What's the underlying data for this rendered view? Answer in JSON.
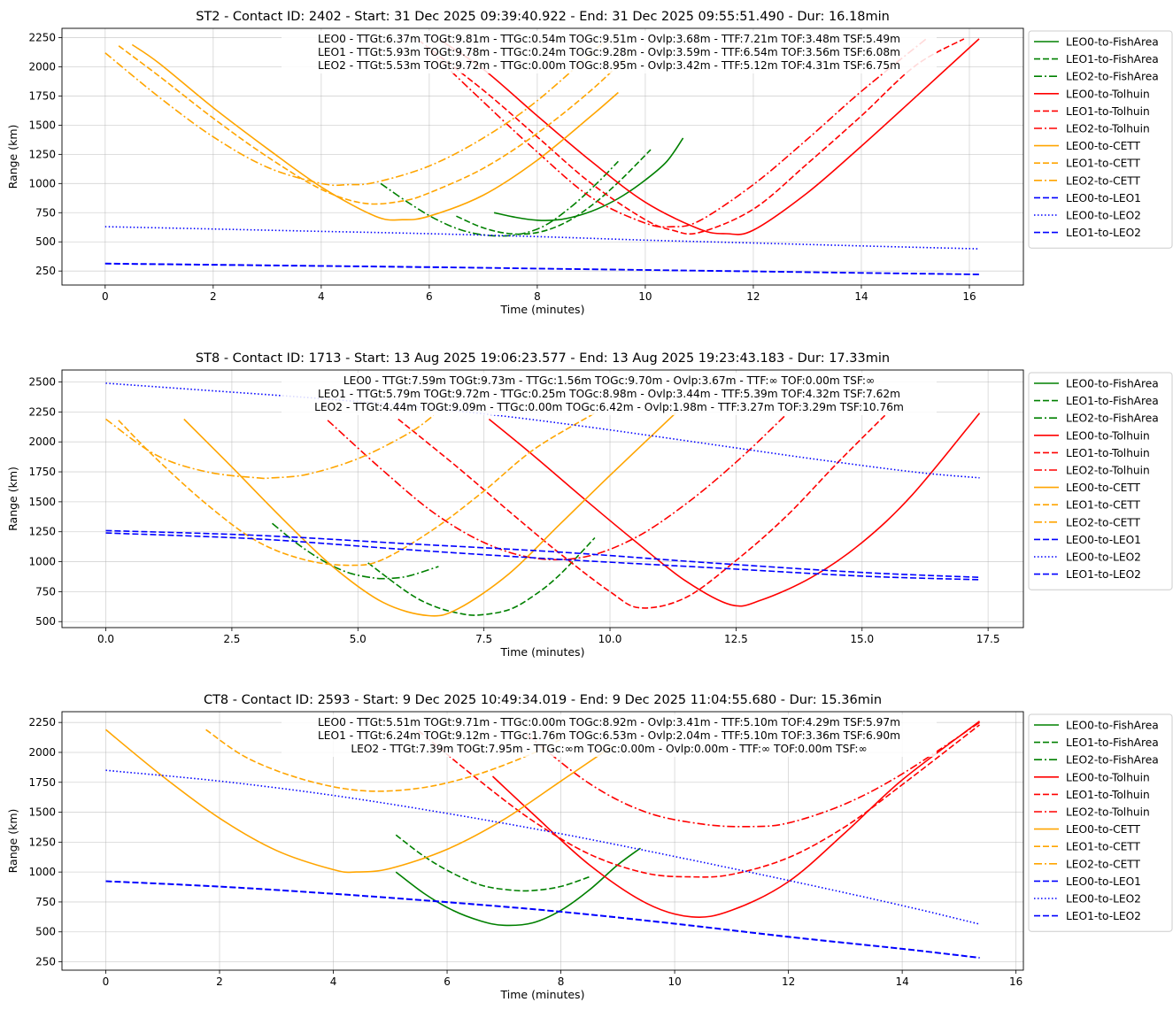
{
  "x_axis_label": "Time (minutes)",
  "y_axis_label": "Range (km)",
  "series_styles": [
    {
      "name": "LEO0-to-FishArea",
      "color": "#008000",
      "dash": "solid"
    },
    {
      "name": "LEO1-to-FishArea",
      "color": "#008000",
      "dash": "dashed"
    },
    {
      "name": "LEO2-to-FishArea",
      "color": "#008000",
      "dash": "dashdot"
    },
    {
      "name": "LEO0-to-Tolhuin",
      "color": "#ff0000",
      "dash": "solid"
    },
    {
      "name": "LEO1-to-Tolhuin",
      "color": "#ff0000",
      "dash": "dashed"
    },
    {
      "name": "LEO2-to-Tolhuin",
      "color": "#ff0000",
      "dash": "dashdot"
    },
    {
      "name": "LEO0-to-CETT",
      "color": "#ffa500",
      "dash": "solid"
    },
    {
      "name": "LEO1-to-CETT",
      "color": "#ffa500",
      "dash": "dashed"
    },
    {
      "name": "LEO2-to-CETT",
      "color": "#ffa500",
      "dash": "dashdot"
    },
    {
      "name": "LEO0-to-LEO1",
      "color": "#0000ff",
      "dash": "dashed"
    },
    {
      "name": "LEO0-to-LEO2",
      "color": "#0000ff",
      "dash": "dotted"
    },
    {
      "name": "LEO1-to-LEO2",
      "color": "#0000ff",
      "dash": "dashed"
    }
  ],
  "chart_data": [
    {
      "type": "line",
      "title": "ST2 - Contact ID: 2402 - Start: 31 Dec 2025 09:39:40.922 - End: 31 Dec 2025 09:55:51.490 - Dur: 16.18min",
      "xlabel": "Time (minutes)",
      "ylabel": "Range (km)",
      "xlim": [
        -0.8,
        17.0
      ],
      "ylim": [
        130,
        2330
      ],
      "xticks": [
        0,
        2,
        4,
        6,
        8,
        10,
        12,
        14,
        16
      ],
      "xtick_labels": [
        "0",
        "2",
        "4",
        "6",
        "8",
        "10",
        "12",
        "14",
        "16"
      ],
      "yticks": [
        250,
        500,
        750,
        1000,
        1250,
        1500,
        1750,
        2000,
        2250
      ],
      "grid": true,
      "legend": "outside-right",
      "annotations": [
        "LEO0 - TTGt:6.37m TOGt:9.81m - TTGc:0.54m TOGc:9.51m - Ovlp:3.68m - TTF:7.21m TOF:3.48m TSF:5.49m",
        "LEO1 - TTGt:5.93m TOGt:9.78m - TTGc:0.24m TOGc:9.28m - Ovlp:3.59m - TTF:6.54m TOF:3.56m TSF:6.08m",
        "LEO2 - TTGt:5.53m TOGt:9.72m - TTGc:0.00m TOGc:8.95m - Ovlp:3.42m - TTF:5.12m TOF:4.31m TSF:6.75m"
      ],
      "series": [
        {
          "name": "LEO0-to-FishArea",
          "x": [
            7.2,
            7.6,
            8.0,
            8.4,
            8.8,
            9.2,
            9.6,
            10.0,
            10.4,
            10.7
          ],
          "y": [
            750,
            710,
            685,
            690,
            730,
            800,
            900,
            1030,
            1190,
            1390
          ]
        },
        {
          "name": "LEO1-to-FishArea",
          "x": [
            6.5,
            7.0,
            7.5,
            8.0,
            8.5,
            9.0,
            9.5,
            10.1
          ],
          "y": [
            720,
            620,
            570,
            580,
            660,
            810,
            1010,
            1290
          ]
        },
        {
          "name": "LEO2-to-FishArea",
          "x": [
            5.1,
            5.6,
            6.1,
            6.6,
            7.1,
            7.6,
            8.1,
            8.6,
            9.1,
            9.5
          ],
          "y": [
            1000,
            840,
            700,
            600,
            555,
            560,
            630,
            790,
            1000,
            1190
          ]
        },
        {
          "name": "LEO0-to-Tolhuin",
          "x": [
            6.2,
            7.0,
            8.0,
            9.0,
            10.0,
            11.0,
            11.5,
            12.0,
            13.0,
            14.0,
            15.0,
            16.18
          ],
          "y": [
            2230,
            1980,
            1580,
            1190,
            840,
            610,
            570,
            600,
            920,
            1320,
            1740,
            2240
          ]
        },
        {
          "name": "LEO1-to-Tolhuin",
          "x": [
            5.8,
            7.0,
            8.0,
            9.0,
            10.0,
            10.5,
            11.0,
            12.0,
            13.0,
            14.0,
            15.0,
            15.9
          ],
          "y": [
            2230,
            1800,
            1400,
            1000,
            690,
            600,
            580,
            780,
            1170,
            1580,
            2010,
            2240
          ]
        },
        {
          "name": "LEO2-to-Tolhuin",
          "x": [
            6.0,
            7.0,
            8.0,
            9.0,
            10.0,
            10.5,
            11.0,
            12.0,
            13.0,
            14.0,
            15.2
          ],
          "y": [
            2140,
            1700,
            1270,
            880,
            660,
            630,
            680,
            990,
            1380,
            1790,
            2240
          ]
        },
        {
          "name": "LEO0-to-CETT",
          "x": [
            0.5,
            1.0,
            2.0,
            3.0,
            4.0,
            5.0,
            5.5,
            6.0,
            7.0,
            8.0,
            9.0,
            9.5
          ],
          "y": [
            2190,
            2030,
            1650,
            1300,
            970,
            720,
            690,
            720,
            900,
            1200,
            1580,
            1780
          ]
        },
        {
          "name": "LEO1-to-CETT",
          "x": [
            0.25,
            1.0,
            2.0,
            3.0,
            4.0,
            4.8,
            5.5,
            6.0,
            7.0,
            8.0,
            9.0,
            9.8
          ],
          "y": [
            2180,
            1920,
            1560,
            1230,
            950,
            830,
            850,
            920,
            1130,
            1430,
            1800,
            2150
          ]
        },
        {
          "name": "LEO2-to-CETT",
          "x": [
            0.0,
            1.0,
            2.0,
            3.0,
            4.0,
            4.5,
            5.0,
            6.0,
            7.0,
            8.0,
            9.2
          ],
          "y": [
            2120,
            1740,
            1400,
            1140,
            1000,
            990,
            1010,
            1150,
            1390,
            1710,
            2200
          ]
        },
        {
          "name": "LEO0-to-LEO1",
          "x": [
            0,
            2,
            4,
            6,
            8,
            10,
            12,
            14,
            16.18
          ],
          "y": [
            315,
            305,
            295,
            285,
            272,
            260,
            248,
            235,
            222
          ]
        },
        {
          "name": "LEO0-to-LEO2",
          "x": [
            0,
            2,
            4,
            6,
            8,
            10,
            12,
            14,
            16.18
          ],
          "y": [
            630,
            610,
            590,
            570,
            545,
            515,
            490,
            465,
            440
          ]
        },
        {
          "name": "LEO1-to-LEO2",
          "x": [
            0,
            2,
            4,
            6,
            8,
            10,
            12,
            14,
            16.18
          ],
          "y": [
            312,
            302,
            292,
            282,
            270,
            258,
            246,
            233,
            220
          ]
        }
      ]
    },
    {
      "type": "line",
      "title": "ST8 - Contact ID: 1713 - Start: 13 Aug 2025 19:06:23.577 - End: 13 Aug 2025 19:23:43.183 - Dur: 17.33min",
      "xlabel": "Time (minutes)",
      "ylabel": "Range (km)",
      "xlim": [
        -0.87,
        18.2
      ],
      "ylim": [
        450,
        2600
      ],
      "xticks": [
        0,
        2.5,
        5,
        7.5,
        10,
        12.5,
        15,
        17.5
      ],
      "xtick_labels": [
        "0.0",
        "2.5",
        "5.0",
        "7.5",
        "10.0",
        "12.5",
        "15.0",
        "17.5"
      ],
      "yticks": [
        500,
        750,
        1000,
        1250,
        1500,
        1750,
        2000,
        2250,
        2500
      ],
      "grid": true,
      "legend": "outside-right",
      "annotations": [
        "LEO0 - TTGt:7.59m TOGt:9.73m - TTGc:1.56m TOGc:9.70m - Ovlp:3.67m - TTF:∞ TOF:0.00m TSF:∞",
        "LEO1 - TTGt:5.79m TOGt:9.72m - TTGc:0.25m TOGc:8.98m - Ovlp:3.44m - TTF:5.39m TOF:4.32m TSF:7.62m",
        "LEO2 - TTGt:4.44m TOGt:9.09m - TTGc:0.00m TOGc:6.42m - Ovlp:1.98m - TTF:3.27m TOF:3.29m TSF:10.76m"
      ],
      "series": [
        {
          "name": "LEO0-to-FishArea",
          "x": [],
          "y": []
        },
        {
          "name": "LEO1-to-FishArea",
          "x": [
            5.2,
            6.0,
            6.5,
            7.0,
            7.4,
            8.0,
            8.5,
            9.0,
            9.7
          ],
          "y": [
            990,
            740,
            630,
            570,
            555,
            600,
            720,
            890,
            1200
          ]
        },
        {
          "name": "LEO2-to-FishArea",
          "x": [
            3.3,
            3.8,
            4.3,
            4.8,
            5.3,
            5.6,
            6.0,
            6.6
          ],
          "y": [
            1320,
            1150,
            1010,
            910,
            865,
            860,
            880,
            960
          ]
        },
        {
          "name": "LEO0-to-Tolhuin",
          "x": [
            7.6,
            8.5,
            9.5,
            10.5,
            11.5,
            12.4,
            13.0,
            14.0,
            15.0,
            16.0,
            17.33
          ],
          "y": [
            2190,
            1880,
            1520,
            1170,
            840,
            640,
            680,
            870,
            1160,
            1560,
            2240
          ]
        },
        {
          "name": "LEO1-to-Tolhuin",
          "x": [
            5.8,
            7.0,
            8.0,
            9.0,
            10.0,
            10.6,
            11.5,
            12.5,
            13.5,
            14.5,
            15.5
          ],
          "y": [
            2190,
            1780,
            1420,
            1070,
            750,
            615,
            700,
            1010,
            1380,
            1820,
            2240
          ]
        },
        {
          "name": "LEO2-to-Tolhuin",
          "x": [
            4.4,
            5.5,
            6.5,
            7.5,
            8.5,
            9.5,
            10.5,
            11.5,
            12.5,
            13.5
          ],
          "y": [
            2180,
            1760,
            1410,
            1160,
            1030,
            1040,
            1200,
            1480,
            1830,
            2230
          ]
        },
        {
          "name": "LEO0-to-CETT",
          "x": [
            1.55,
            2.5,
            3.5,
            4.5,
            5.5,
            6.4,
            7.0,
            8.0,
            9.0,
            10.0,
            11.3
          ],
          "y": [
            2190,
            1790,
            1360,
            960,
            660,
            550,
            610,
            900,
            1310,
            1720,
            2240
          ]
        },
        {
          "name": "LEO1-to-CETT",
          "x": [
            0.25,
            1.0,
            2.0,
            3.0,
            4.0,
            4.9,
            5.5,
            6.5,
            7.5,
            8.5,
            9.7
          ],
          "y": [
            2180,
            1860,
            1480,
            1170,
            1010,
            970,
            1020,
            1270,
            1590,
            1940,
            2240
          ]
        },
        {
          "name": "LEO2-to-CETT",
          "x": [
            0.0,
            1.0,
            2.0,
            3.0,
            3.3,
            4.0,
            5.0,
            6.0,
            6.5
          ],
          "y": [
            2190,
            1890,
            1750,
            1700,
            1700,
            1730,
            1860,
            2070,
            2220
          ]
        },
        {
          "name": "LEO0-to-LEO1",
          "x": [
            0,
            3,
            6,
            9,
            12,
            15,
            17.33
          ],
          "y": [
            1260,
            1220,
            1150,
            1080,
            990,
            910,
            870
          ]
        },
        {
          "name": "LEO0-to-LEO2",
          "x": [
            0,
            2,
            4,
            6,
            8,
            10,
            12,
            14,
            16,
            17.33
          ],
          "y": [
            2490,
            2430,
            2370,
            2300,
            2210,
            2100,
            1980,
            1860,
            1750,
            1700
          ]
        },
        {
          "name": "LEO1-to-LEO2",
          "x": [
            0,
            3,
            6,
            9,
            12,
            15,
            17.33
          ],
          "y": [
            1240,
            1190,
            1100,
            1020,
            950,
            880,
            850
          ]
        }
      ]
    },
    {
      "type": "line",
      "title": "CT8 - Contact ID: 2593 - Start: 9 Dec 2025 10:49:34.019 - End: 9 Dec 2025 11:04:55.680 - Dur: 15.36min",
      "xlabel": "Time (minutes)",
      "ylabel": "Range (km)",
      "xlim": [
        -0.77,
        16.13
      ],
      "ylim": [
        180,
        2340
      ],
      "xticks": [
        0,
        2,
        4,
        6,
        8,
        10,
        12,
        14,
        16
      ],
      "xtick_labels": [
        "0",
        "2",
        "4",
        "6",
        "8",
        "10",
        "12",
        "14",
        "16"
      ],
      "yticks": [
        250,
        500,
        750,
        1000,
        1250,
        1500,
        1750,
        2000,
        2250
      ],
      "grid": true,
      "legend": "outside-right",
      "annotations": [
        "LEO0 - TTGt:5.51m TOGt:9.71m - TTGc:0.00m TOGc:8.92m - Ovlp:3.41m - TTF:5.10m TOF:4.29m TSF:5.97m",
        "LEO1 - TTGt:6.24m TOGt:9.12m - TTGc:1.76m TOGc:6.53m - Ovlp:2.04m - TTF:5.10m TOF:3.36m TSF:6.90m",
        "LEO2 - TTGt:7.39m TOGt:7.95m - TTGc:∞m TOGc:0.00m - Ovlp:0.00m - TTF:∞ TOF:0.00m TSF:∞"
      ],
      "series": [
        {
          "name": "LEO0-to-FishArea",
          "x": [
            5.1,
            5.6,
            6.1,
            6.6,
            7.0,
            7.5,
            8.0,
            8.5,
            9.0,
            9.4
          ],
          "y": [
            1000,
            820,
            680,
            590,
            555,
            575,
            680,
            850,
            1060,
            1200
          ]
        },
        {
          "name": "LEO1-to-FishArea",
          "x": [
            5.1,
            5.6,
            6.1,
            6.6,
            7.1,
            7.5,
            8.0,
            8.5
          ],
          "y": [
            1310,
            1130,
            990,
            890,
            850,
            845,
            880,
            960
          ]
        },
        {
          "name": "LEO2-to-FishArea",
          "x": [],
          "y": []
        },
        {
          "name": "LEO0-to-Tolhuin",
          "x": [
            6.8,
            7.5,
            8.5,
            9.5,
            10.3,
            11.0,
            12.0,
            13.0,
            14.0,
            15.36
          ],
          "y": [
            1800,
            1490,
            1060,
            740,
            625,
            680,
            920,
            1330,
            1770,
            2260
          ]
        },
        {
          "name": "LEO1-to-Tolhuin",
          "x": [
            5.5,
            6.5,
            7.5,
            8.5,
            9.5,
            10.3,
            11.0,
            12.0,
            13.0,
            14.0,
            15.36
          ],
          "y": [
            2180,
            1790,
            1430,
            1150,
            990,
            960,
            980,
            1120,
            1380,
            1730,
            2230
          ]
        },
        {
          "name": "LEO2-to-Tolhuin",
          "x": [
            7.4,
            8.5,
            9.5,
            10.5,
            11.3,
            12.0,
            13.0,
            14.0,
            15.36
          ],
          "y": [
            2150,
            1740,
            1500,
            1400,
            1380,
            1410,
            1570,
            1820,
            2250
          ]
        },
        {
          "name": "LEO0-to-CETT",
          "x": [
            0,
            1,
            2,
            3,
            4,
            4.4,
            5,
            6,
            7,
            8,
            8.9
          ],
          "y": [
            2190,
            1800,
            1450,
            1180,
            1020,
            1000,
            1030,
            1190,
            1440,
            1760,
            2050
          ]
        },
        {
          "name": "LEO1-to-CETT",
          "x": [
            1.76,
            2.5,
            3.5,
            4.5,
            5.5,
            6.5,
            7.5,
            8.0
          ],
          "y": [
            2190,
            1950,
            1770,
            1680,
            1700,
            1810,
            1990,
            2110
          ]
        },
        {
          "name": "LEO2-to-CETT",
          "x": [],
          "y": []
        },
        {
          "name": "LEO0-to-LEO1",
          "x": [
            0,
            2,
            4,
            6,
            8,
            10,
            12,
            14,
            15.36
          ],
          "y": [
            925,
            880,
            820,
            750,
            670,
            570,
            460,
            360,
            285
          ]
        },
        {
          "name": "LEO0-to-LEO2",
          "x": [
            0,
            2,
            4,
            6,
            8,
            10,
            12,
            14,
            15.36
          ],
          "y": [
            1850,
            1760,
            1640,
            1490,
            1320,
            1130,
            930,
            720,
            565
          ]
        },
        {
          "name": "LEO1-to-LEO2",
          "x": [
            0,
            2,
            4,
            6,
            8,
            10,
            12,
            14,
            15.36
          ],
          "y": [
            922,
            877,
            817,
            747,
            667,
            567,
            457,
            357,
            282
          ]
        }
      ]
    }
  ]
}
